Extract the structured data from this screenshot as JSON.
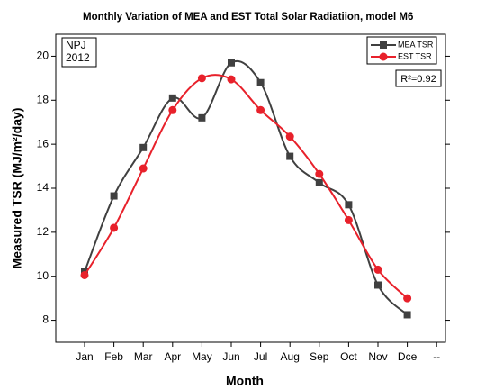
{
  "chart_data": {
    "type": "line",
    "title": "Monthly Variation of MEA and EST Total Solar Radiatiion, model M6",
    "x_label": "Month",
    "y_label": "Measured TSR (MJ/m²/day)",
    "categories": [
      "Jan",
      "Feb",
      "Mar",
      "Apr",
      "May",
      "Jun",
      "Jul",
      "Aug",
      "Sep",
      "Oct",
      "Nov",
      "Dce",
      "--"
    ],
    "series": [
      {
        "name": "MEA TSR",
        "color": "#404040",
        "marker": "square",
        "values": [
          10.2,
          13.65,
          15.85,
          18.1,
          17.2,
          19.7,
          18.8,
          15.45,
          14.25,
          13.25,
          9.6,
          8.25,
          null
        ]
      },
      {
        "name": "EST TSR",
        "color": "#e8212b",
        "marker": "circle",
        "values": [
          10.05,
          12.2,
          14.9,
          17.55,
          19.0,
          18.95,
          17.55,
          16.35,
          14.65,
          12.55,
          10.3,
          9.0,
          null
        ]
      }
    ],
    "ylim": [
      7,
      21
    ],
    "yticks": [
      8,
      10,
      12,
      14,
      16,
      18,
      20
    ],
    "annotations": [
      "NPJ",
      "2012",
      "R²=0.92"
    ],
    "legend": "upper right"
  }
}
